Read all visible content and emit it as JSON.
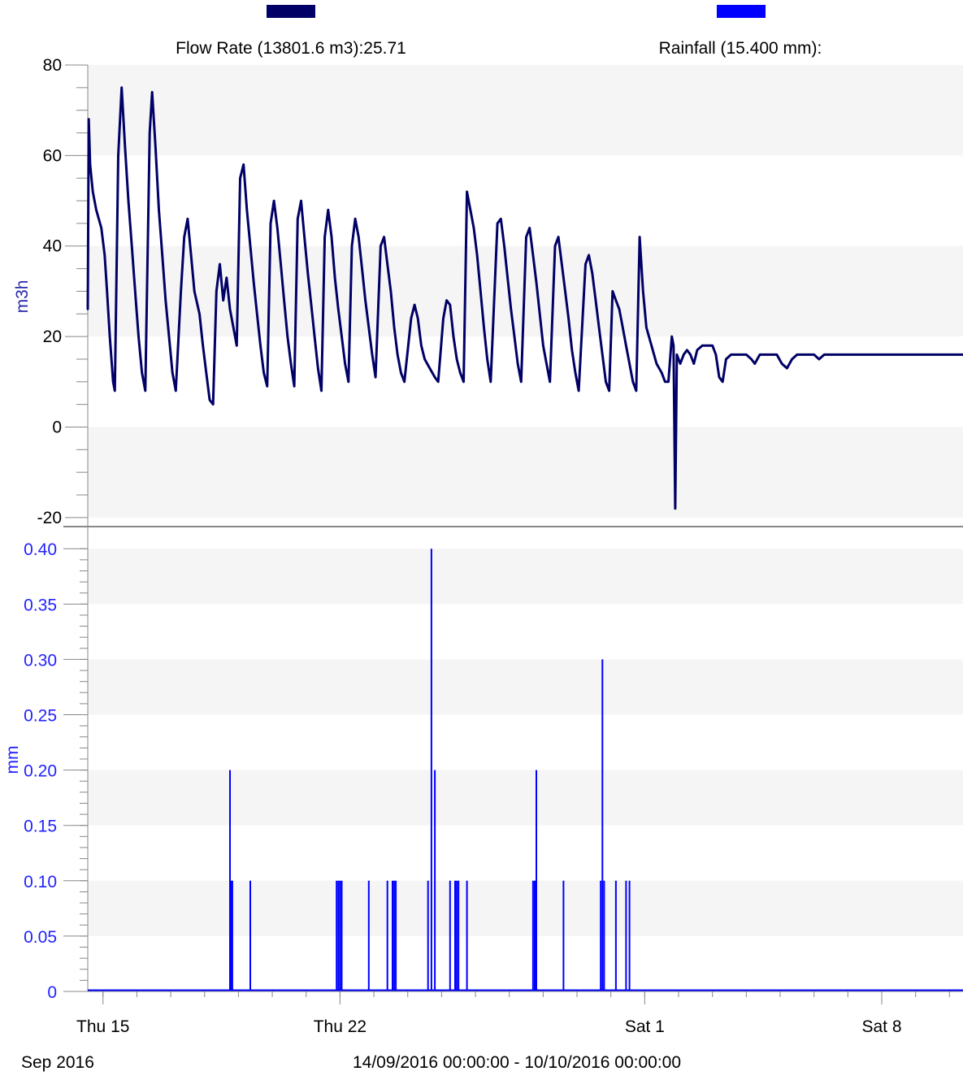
{
  "legend": {
    "flow_label": "Flow Rate (13801.6 m3):25.71",
    "rain_label": "Rainfall (15.400 mm):"
  },
  "colors": {
    "flow": "#000066",
    "rain": "#0000ff",
    "band": "#f5f5f5",
    "axis": "#888888",
    "ylabel_flow": "#2a2aa8",
    "ylabel_rain": "#2222ff"
  },
  "footer": {
    "month_label": "Sep 2016",
    "range_label": "14/09/2016 00:00:00 - 10/10/2016 00:00:00"
  },
  "chart_data": [
    {
      "type": "line",
      "name": "Flow Rate (13801.6 m3):25.71",
      "ylabel": "m3h",
      "ylim": [
        -22,
        80
      ],
      "yticks": [
        -20,
        0,
        20,
        40,
        60,
        80
      ],
      "xlim": [
        14.55,
        40.4
      ],
      "x_ticks": [
        {
          "x": 15,
          "label": "Thu 15"
        },
        {
          "x": 22,
          "label": "Thu 22"
        },
        {
          "x": 31,
          "label": "Sat 1"
        },
        {
          "x": 38,
          "label": "Sat 8"
        }
      ],
      "x_units": "days (Sep 2016; 31 = 1 Oct)",
      "grid": "alternating horizontal bands",
      "series": [
        {
          "name": "Flow Rate",
          "points": [
            [
              14.55,
              26
            ],
            [
              14.58,
              68
            ],
            [
              14.62,
              58
            ],
            [
              14.7,
              52
            ],
            [
              14.8,
              48
            ],
            [
              14.95,
              44
            ],
            [
              15.05,
              38
            ],
            [
              15.12,
              30
            ],
            [
              15.2,
              20
            ],
            [
              15.3,
              10
            ],
            [
              15.35,
              8
            ],
            [
              15.45,
              60
            ],
            [
              15.55,
              75
            ],
            [
              15.65,
              62
            ],
            [
              15.75,
              50
            ],
            [
              15.85,
              40
            ],
            [
              15.95,
              30
            ],
            [
              16.05,
              20
            ],
            [
              16.15,
              12
            ],
            [
              16.25,
              8
            ],
            [
              16.38,
              65
            ],
            [
              16.45,
              74
            ],
            [
              16.55,
              62
            ],
            [
              16.65,
              48
            ],
            [
              16.75,
              38
            ],
            [
              16.85,
              28
            ],
            [
              16.95,
              20
            ],
            [
              17.05,
              12
            ],
            [
              17.15,
              8
            ],
            [
              17.3,
              30
            ],
            [
              17.4,
              42
            ],
            [
              17.5,
              46
            ],
            [
              17.6,
              38
            ],
            [
              17.7,
              30
            ],
            [
              17.85,
              25
            ],
            [
              17.95,
              18
            ],
            [
              18.05,
              12
            ],
            [
              18.15,
              6
            ],
            [
              18.25,
              5
            ],
            [
              18.35,
              30
            ],
            [
              18.45,
              36
            ],
            [
              18.55,
              28
            ],
            [
              18.65,
              33
            ],
            [
              18.75,
              26
            ],
            [
              18.85,
              22
            ],
            [
              18.95,
              18
            ],
            [
              19.05,
              55
            ],
            [
              19.15,
              58
            ],
            [
              19.25,
              48
            ],
            [
              19.35,
              40
            ],
            [
              19.45,
              32
            ],
            [
              19.55,
              25
            ],
            [
              19.65,
              18
            ],
            [
              19.75,
              12
            ],
            [
              19.85,
              9
            ],
            [
              19.95,
              45
            ],
            [
              20.05,
              50
            ],
            [
              20.15,
              44
            ],
            [
              20.25,
              36
            ],
            [
              20.35,
              28
            ],
            [
              20.45,
              20
            ],
            [
              20.55,
              14
            ],
            [
              20.65,
              9
            ],
            [
              20.75,
              46
            ],
            [
              20.85,
              50
            ],
            [
              20.95,
              42
            ],
            [
              21.05,
              34
            ],
            [
              21.15,
              27
            ],
            [
              21.25,
              20
            ],
            [
              21.35,
              13
            ],
            [
              21.45,
              8
            ],
            [
              21.55,
              42
            ],
            [
              21.65,
              48
            ],
            [
              21.75,
              42
            ],
            [
              21.85,
              33
            ],
            [
              21.95,
              26
            ],
            [
              22.05,
              20
            ],
            [
              22.15,
              14
            ],
            [
              22.25,
              10
            ],
            [
              22.35,
              40
            ],
            [
              22.45,
              46
            ],
            [
              22.55,
              42
            ],
            [
              22.65,
              35
            ],
            [
              22.75,
              28
            ],
            [
              22.85,
              22
            ],
            [
              22.95,
              16
            ],
            [
              23.05,
              11
            ],
            [
              23.2,
              40
            ],
            [
              23.3,
              42
            ],
            [
              23.4,
              36
            ],
            [
              23.5,
              30
            ],
            [
              23.6,
              22
            ],
            [
              23.7,
              16
            ],
            [
              23.8,
              12
            ],
            [
              23.9,
              10
            ],
            [
              24.1,
              24
            ],
            [
              24.2,
              27
            ],
            [
              24.3,
              24
            ],
            [
              24.4,
              18
            ],
            [
              24.5,
              15
            ],
            [
              24.65,
              13
            ],
            [
              24.8,
              11
            ],
            [
              24.9,
              10
            ],
            [
              25.05,
              24
            ],
            [
              25.15,
              28
            ],
            [
              25.25,
              27
            ],
            [
              25.35,
              20
            ],
            [
              25.45,
              15
            ],
            [
              25.55,
              12
            ],
            [
              25.65,
              10
            ],
            [
              25.75,
              52
            ],
            [
              25.85,
              48
            ],
            [
              25.95,
              44
            ],
            [
              26.05,
              38
            ],
            [
              26.15,
              30
            ],
            [
              26.25,
              22
            ],
            [
              26.35,
              15
            ],
            [
              26.45,
              10
            ],
            [
              26.65,
              45
            ],
            [
              26.75,
              46
            ],
            [
              26.85,
              40
            ],
            [
              26.95,
              33
            ],
            [
              27.05,
              26
            ],
            [
              27.15,
              20
            ],
            [
              27.25,
              14
            ],
            [
              27.35,
              10
            ],
            [
              27.5,
              42
            ],
            [
              27.6,
              44
            ],
            [
              27.7,
              38
            ],
            [
              27.8,
              32
            ],
            [
              27.9,
              25
            ],
            [
              28.0,
              18
            ],
            [
              28.1,
              14
            ],
            [
              28.2,
              10
            ],
            [
              28.35,
              40
            ],
            [
              28.45,
              42
            ],
            [
              28.55,
              36
            ],
            [
              28.65,
              30
            ],
            [
              28.75,
              24
            ],
            [
              28.85,
              17
            ],
            [
              28.95,
              12
            ],
            [
              29.05,
              8
            ],
            [
              29.25,
              36
            ],
            [
              29.35,
              38
            ],
            [
              29.45,
              34
            ],
            [
              29.55,
              28
            ],
            [
              29.65,
              22
            ],
            [
              29.75,
              16
            ],
            [
              29.85,
              10
            ],
            [
              29.95,
              8
            ],
            [
              30.05,
              30
            ],
            [
              30.15,
              28
            ],
            [
              30.25,
              26
            ],
            [
              30.35,
              22
            ],
            [
              30.45,
              18
            ],
            [
              30.55,
              14
            ],
            [
              30.65,
              10
            ],
            [
              30.75,
              8
            ],
            [
              30.85,
              42
            ],
            [
              30.95,
              30
            ],
            [
              31.05,
              22
            ],
            [
              31.2,
              18
            ],
            [
              31.35,
              14
            ],
            [
              31.5,
              12
            ],
            [
              31.6,
              10
            ],
            [
              31.7,
              10
            ],
            [
              31.8,
              20
            ],
            [
              31.85,
              18
            ],
            [
              31.9,
              -18
            ],
            [
              31.95,
              16
            ],
            [
              32.05,
              14
            ],
            [
              32.15,
              16
            ],
            [
              32.25,
              17
            ],
            [
              32.35,
              16
            ],
            [
              32.45,
              14
            ],
            [
              32.55,
              17
            ],
            [
              32.7,
              18
            ],
            [
              33.0,
              18
            ],
            [
              33.1,
              16
            ],
            [
              33.2,
              11
            ],
            [
              33.3,
              10
            ],
            [
              33.4,
              15
            ],
            [
              33.55,
              16
            ],
            [
              34.0,
              16
            ],
            [
              34.15,
              15
            ],
            [
              34.25,
              14
            ],
            [
              34.4,
              16
            ],
            [
              34.9,
              16
            ],
            [
              35.05,
              14
            ],
            [
              35.2,
              13
            ],
            [
              35.35,
              15
            ],
            [
              35.5,
              16
            ],
            [
              36.0,
              16
            ],
            [
              36.15,
              15
            ],
            [
              36.3,
              16
            ],
            [
              40.4,
              16
            ]
          ]
        }
      ]
    },
    {
      "type": "bar",
      "name": "Rainfall (15.400 mm):",
      "ylabel": "mm",
      "ylim": [
        0,
        0.42
      ],
      "yticks": [
        0,
        0.05,
        0.1,
        0.15,
        0.2,
        0.25,
        0.3,
        0.35,
        0.4
      ],
      "ytick_labels": [
        "0",
        "0.05",
        "0.10",
        "0.15",
        "0.20",
        "0.25",
        "0.30",
        "0.35",
        "0.40"
      ],
      "xlim": [
        14.55,
        40.4
      ],
      "x_ticks": [
        {
          "x": 15,
          "label": "Thu 15"
        },
        {
          "x": 22,
          "label": "Thu 22"
        },
        {
          "x": 31,
          "label": "Sat 1"
        },
        {
          "x": 38,
          "label": "Sat 8"
        }
      ],
      "grid": "alternating horizontal bands",
      "series": [
        {
          "name": "Rainfall",
          "bars": [
            [
              18.75,
              0.2
            ],
            [
              18.78,
              0.1
            ],
            [
              18.82,
              0.1
            ],
            [
              19.35,
              0.1
            ],
            [
              21.9,
              0.1
            ],
            [
              21.95,
              0.1
            ],
            [
              22.0,
              0.1
            ],
            [
              22.05,
              0.1
            ],
            [
              22.85,
              0.1
            ],
            [
              23.4,
              0.1
            ],
            [
              23.55,
              0.1
            ],
            [
              23.6,
              0.1
            ],
            [
              23.65,
              0.1
            ],
            [
              24.6,
              0.1
            ],
            [
              24.7,
              0.4
            ],
            [
              24.8,
              0.2
            ],
            [
              25.25,
              0.1
            ],
            [
              25.4,
              0.1
            ],
            [
              25.45,
              0.1
            ],
            [
              25.5,
              0.1
            ],
            [
              25.75,
              0.1
            ],
            [
              27.7,
              0.1
            ],
            [
              27.75,
              0.1
            ],
            [
              27.8,
              0.2
            ],
            [
              28.6,
              0.1
            ],
            [
              29.7,
              0.1
            ],
            [
              29.75,
              0.3
            ],
            [
              29.8,
              0.1
            ],
            [
              30.15,
              0.1
            ],
            [
              30.45,
              0.1
            ],
            [
              30.55,
              0.1
            ]
          ]
        }
      ]
    }
  ]
}
